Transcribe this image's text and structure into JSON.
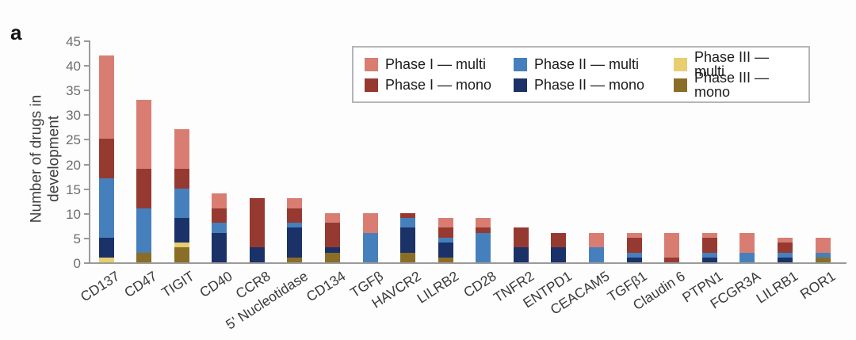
{
  "panel_label": "a",
  "colors": {
    "phase1_multi": "#d97d73",
    "phase1_mono": "#963a31",
    "phase2_multi": "#4680bc",
    "phase2_mono": "#1a3268",
    "phase3_multi": "#e8cd71",
    "phase3_mono": "#8a6d26",
    "axis": "#9a9a9a",
    "ytick_text": "#6d6d6d",
    "xtick_text": "#3a3a3a"
  },
  "chart_data": {
    "type": "bar",
    "subtype": "stacked-vertical",
    "title": "",
    "ylabel_lines": "Number of drugs in\ndevelopment",
    "xlabel": "",
    "ylim": [
      0,
      45
    ],
    "yticks": [
      0,
      5,
      10,
      15,
      20,
      25,
      30,
      35,
      40,
      45
    ],
    "grid": false,
    "legend_position": "top-right inside box",
    "categories": [
      "CD137",
      "CD47",
      "TIGIT",
      "CD40",
      "CCR8",
      "5' Nucleotidase",
      "CD134",
      "TGFβ",
      "HAVCR2",
      "LILRB2",
      "CD28",
      "TNFR2",
      "ENTPD1",
      "CEACAM5",
      "TGFβ1",
      "Claudin 6",
      "PTPN1",
      "FCGR3A",
      "LILRB1",
      "ROR1"
    ],
    "series": [
      {
        "name": "Phase III — mono",
        "color_key": "phase3_mono",
        "values": [
          0,
          2,
          3,
          0,
          0,
          1,
          2,
          0,
          2,
          1,
          0,
          0,
          0,
          0,
          0,
          0,
          0,
          0,
          0,
          1
        ]
      },
      {
        "name": "Phase III — multi",
        "color_key": "phase3_multi",
        "values": [
          1,
          0,
          1,
          0,
          0,
          0,
          0,
          0,
          0,
          0,
          0,
          0,
          0,
          0,
          0,
          0,
          0,
          0,
          0,
          0
        ]
      },
      {
        "name": "Phase II — mono",
        "color_key": "phase2_mono",
        "values": [
          4,
          0,
          5,
          6,
          3,
          6,
          1,
          0,
          5,
          3,
          0,
          3,
          3,
          0,
          1,
          0,
          1,
          0,
          1,
          0
        ]
      },
      {
        "name": "Phase II — multi",
        "color_key": "phase2_multi",
        "values": [
          12,
          9,
          6,
          2,
          0,
          1,
          0,
          6,
          2,
          1,
          6,
          0,
          0,
          3,
          1,
          0,
          1,
          2,
          1,
          1
        ]
      },
      {
        "name": "Phase I — mono",
        "color_key": "phase1_mono",
        "values": [
          8,
          8,
          4,
          3,
          10,
          3,
          5,
          0,
          1,
          2,
          1,
          4,
          3,
          0,
          3,
          1,
          3,
          0,
          2,
          0
        ]
      },
      {
        "name": "Phase I — multi",
        "color_key": "phase1_multi",
        "values": [
          17,
          14,
          8,
          3,
          0,
          2,
          2,
          4,
          0,
          2,
          2,
          0,
          0,
          3,
          1,
          5,
          1,
          4,
          1,
          3
        ]
      }
    ],
    "totals": [
      42,
      33,
      27,
      14,
      13,
      13,
      10,
      10,
      10,
      9,
      9,
      7,
      6,
      6,
      6,
      6,
      6,
      6,
      5,
      5
    ]
  },
  "legend": {
    "items": [
      {
        "label": "Phase I — multi",
        "color_key": "phase1_multi"
      },
      {
        "label": "Phase II — multi",
        "color_key": "phase2_multi"
      },
      {
        "label": "Phase III — multi",
        "color_key": "phase3_multi"
      },
      {
        "label": "Phase I — mono",
        "color_key": "phase1_mono"
      },
      {
        "label": "Phase II — mono",
        "color_key": "phase2_mono"
      },
      {
        "label": "Phase III — mono",
        "color_key": "phase3_mono"
      }
    ]
  }
}
